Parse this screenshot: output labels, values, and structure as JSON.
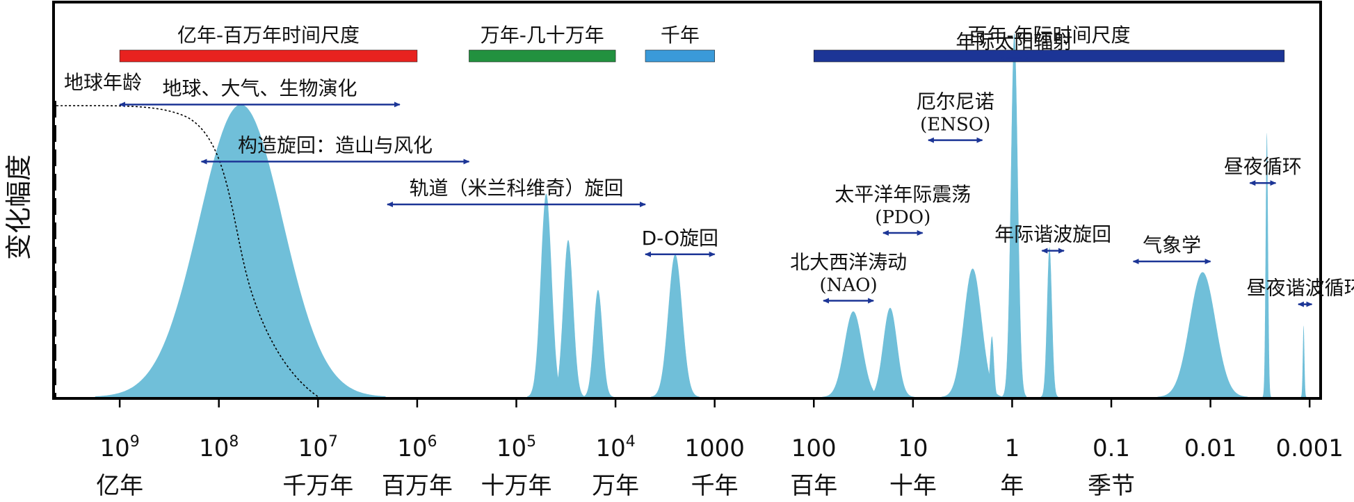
{
  "chart_data": {
    "type": "area",
    "title": "",
    "ylabel": "变化幅度",
    "x_scale": "log",
    "x_reversed": true,
    "x_unit": "years (period)",
    "xlim": [
      4500000000,
      0.0008
    ],
    "x_ticks": [
      {
        "value": 1000000000,
        "label": "10",
        "sup": "9",
        "unit_label": "亿年"
      },
      {
        "value": 100000000,
        "label": "10",
        "sup": "8",
        "unit_label": ""
      },
      {
        "value": 10000000,
        "label": "10",
        "sup": "7",
        "unit_label": "千万年"
      },
      {
        "value": 1000000,
        "label": "10",
        "sup": "6",
        "unit_label": "百万年"
      },
      {
        "value": 100000,
        "label": "10",
        "sup": "5",
        "unit_label": "十万年"
      },
      {
        "value": 10000,
        "label": "10",
        "sup": "4",
        "unit_label": "万年"
      },
      {
        "value": 1000,
        "label": "1000",
        "sup": "",
        "unit_label": "千年"
      },
      {
        "value": 100,
        "label": "100",
        "sup": "",
        "unit_label": "百年"
      },
      {
        "value": 10,
        "label": "10",
        "sup": "",
        "unit_label": "十年"
      },
      {
        "value": 1,
        "label": "1",
        "sup": "",
        "unit_label": "年"
      },
      {
        "value": 0.1,
        "label": "0.1",
        "sup": "",
        "unit_label": "季节"
      },
      {
        "value": 0.01,
        "label": "0.01",
        "sup": "",
        "unit_label": ""
      },
      {
        "value": 0.001,
        "label": "0.001",
        "sup": "",
        "unit_label": ""
      }
    ],
    "fill_color": "#70bfd9",
    "scale_bars": [
      {
        "label": "亿年-百万年时间尺度",
        "from": 1000000000,
        "to": 1000000,
        "color": "#e8221f"
      },
      {
        "label": "万年-几十万年",
        "from": 300000,
        "to": 10000,
        "color": "#22913f"
      },
      {
        "label": "千年",
        "from": 5000,
        "to": 1000,
        "color": "#3a9ad9"
      },
      {
        "label": "百年-年际时间尺度",
        "from": 100,
        "to": 0.0018,
        "color": "#1c3596"
      }
    ],
    "earth_age": {
      "label": "地球年龄",
      "x": 4500000000
    },
    "peaks": [
      {
        "center": 60000000,
        "width": 0.42,
        "amplitude": 0.82
      },
      {
        "center": 50000,
        "width": 0.055,
        "amplitude": 0.57
      },
      {
        "center": 30000,
        "width": 0.05,
        "amplitude": 0.44
      },
      {
        "center": 15000,
        "width": 0.045,
        "amplitude": 0.3
      },
      {
        "center": 2500,
        "width": 0.07,
        "amplitude": 0.4
      },
      {
        "center": 40,
        "width": 0.09,
        "amplitude": 0.24
      },
      {
        "center": 17,
        "width": 0.07,
        "amplitude": 0.25
      },
      {
        "center": 2.5,
        "width": 0.09,
        "amplitude": 0.36
      },
      {
        "center": 1.6,
        "width": 0.02,
        "amplitude": 0.17
      },
      {
        "center": 0.95,
        "width": 0.035,
        "amplitude": 1.02
      },
      {
        "center": 0.42,
        "width": 0.025,
        "amplitude": 0.42
      },
      {
        "center": 0.012,
        "width": 0.13,
        "amplitude": 0.35
      },
      {
        "center": 0.0027,
        "width": 0.012,
        "amplitude": 0.74
      },
      {
        "center": 0.00115,
        "width": 0.008,
        "amplitude": 0.2
      }
    ],
    "annotations": [
      {
        "label": "地球、大气、生物演化",
        "sublabel": "",
        "from": 1000000000,
        "to": 1500000,
        "arrow_level": 0.82
      },
      {
        "label": "构造旋回：造山与风化",
        "sublabel": "",
        "from": 150000000,
        "to": 300000,
        "arrow_level": 0.66
      },
      {
        "label": "轨道（米兰科维奇）旋回",
        "sublabel": "",
        "from": 2000000,
        "to": 5000,
        "arrow_level": 0.54
      },
      {
        "label": "D-O旋回",
        "sublabel": "",
        "from": 5000,
        "to": 1000,
        "arrow_level": 0.4
      },
      {
        "label": "北大西洋涛动",
        "sublabel": "(NAO)",
        "from": 80,
        "to": 25,
        "arrow_level": 0.27
      },
      {
        "label": "太平洋年际震荡",
        "sublabel": "(PDO)",
        "from": 20,
        "to": 8,
        "arrow_level": 0.46
      },
      {
        "label": "厄尔尼诺",
        "sublabel": "(ENSO)",
        "from": 7,
        "to": 2,
        "arrow_level": 0.72
      },
      {
        "label": "年际太阳辐射",
        "sublabel": "",
        "from": 1.3,
        "to": 0.7,
        "arrow_level": 0.95
      },
      {
        "label": "年际谐波旋回",
        "sublabel": "",
        "from": 0.5,
        "to": 0.3,
        "arrow_level": 0.41
      },
      {
        "label": "气象学",
        "sublabel": "",
        "from": 0.06,
        "to": 0.01,
        "arrow_level": 0.38
      },
      {
        "label": "昼夜循环",
        "sublabel": "",
        "from": 0.004,
        "to": 0.0022,
        "arrow_level": 0.6
      },
      {
        "label": "昼夜谐波循环",
        "sublabel": "",
        "from": 0.0013,
        "to": 0.00095,
        "arrow_level": 0.26
      }
    ]
  }
}
